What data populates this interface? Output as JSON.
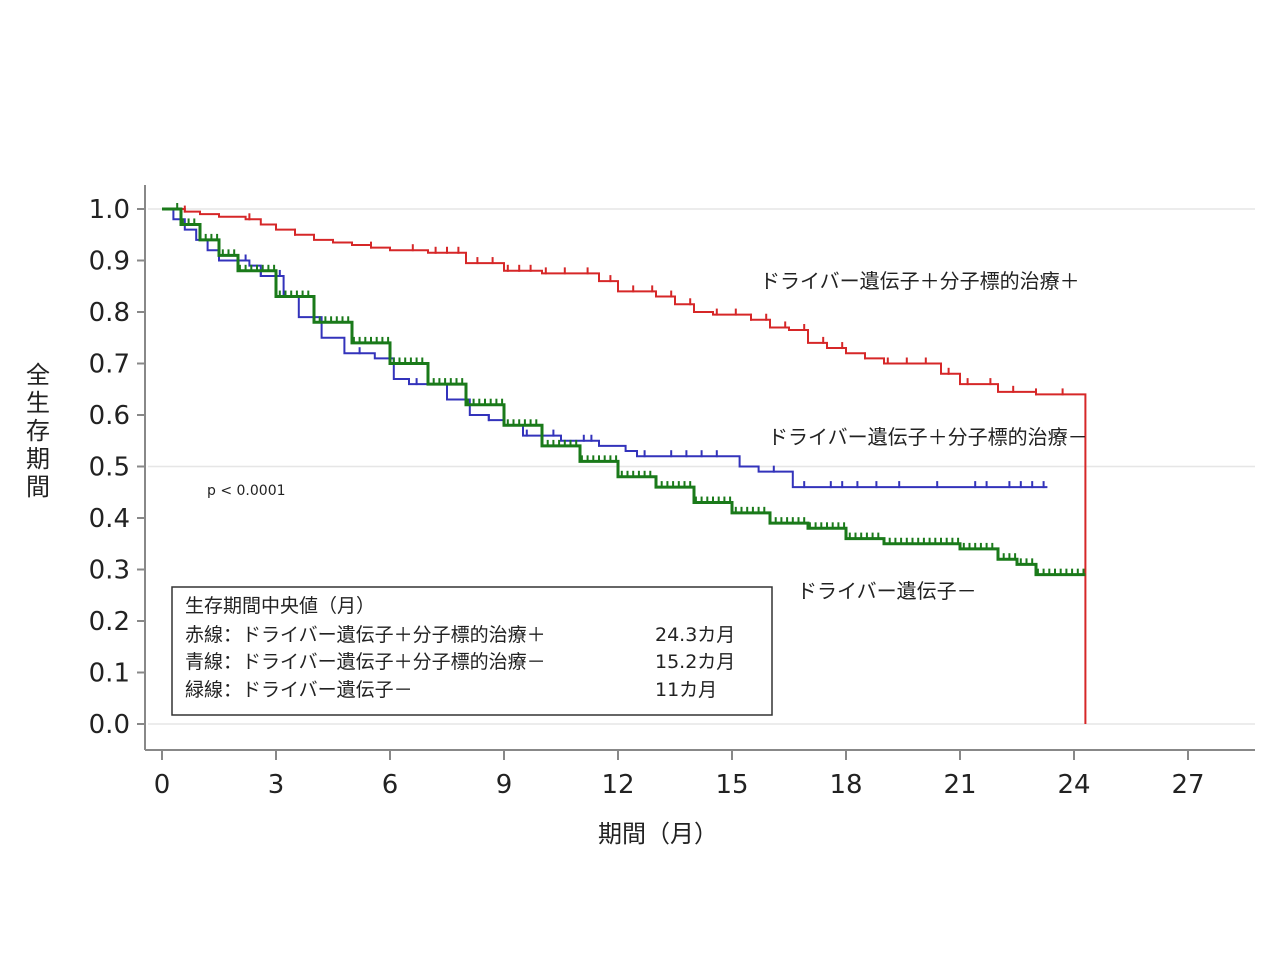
{
  "chart_data": {
    "type": "line",
    "chart_kind": "kaplan-meier",
    "xlabel": "期間（月）",
    "ylabel": "全生存期間",
    "xlim": [
      0,
      27
    ],
    "ylim": [
      0,
      1
    ],
    "xticks": [
      "0",
      "3",
      "6",
      "9",
      "12",
      "15",
      "18",
      "21",
      "24",
      "27"
    ],
    "yticks": [
      "0.0",
      "0.1",
      "0.2",
      "0.3",
      "0.4",
      "0.5",
      "0.6",
      "0.7",
      "0.8",
      "0.9",
      "1.0"
    ],
    "reference_lines_y": [
      1.0,
      0.5,
      0.0
    ],
    "annotation": "p < 0.0001",
    "legend": {
      "title": "生存期間中央値（月）",
      "rows": [
        {
          "label": "赤線：ドライバー遺伝子＋分子標的治療＋",
          "value": "24.3カ月"
        },
        {
          "label": "青線：ドライバー遺伝子＋分子標的治療－",
          "value": "15.2カ月"
        },
        {
          "label": "緑線：ドライバー遺伝子－",
          "value": "11カ月"
        }
      ],
      "position": "bottom-left"
    },
    "series": [
      {
        "name": "ドライバー遺伝子＋分子標的治療＋",
        "color": "#d62728",
        "x": [
          0,
          0.3,
          0.6,
          1.0,
          1.5,
          2.2,
          2.6,
          3.0,
          3.5,
          4.0,
          4.5,
          5.0,
          5.5,
          6.0,
          7.0,
          8.0,
          9.0,
          10.0,
          11.0,
          11.5,
          12.0,
          13.0,
          13.5,
          14.0,
          14.5,
          15.0,
          15.5,
          16.0,
          16.5,
          17.0,
          17.5,
          18.0,
          18.5,
          19.0,
          20.0,
          20.5,
          21.0,
          22.0,
          23.0,
          24.3,
          24.3
        ],
        "y": [
          1.0,
          1.0,
          0.995,
          0.99,
          0.985,
          0.98,
          0.97,
          0.96,
          0.95,
          0.94,
          0.935,
          0.93,
          0.925,
          0.92,
          0.915,
          0.895,
          0.88,
          0.875,
          0.875,
          0.86,
          0.84,
          0.83,
          0.815,
          0.8,
          0.795,
          0.795,
          0.785,
          0.77,
          0.765,
          0.74,
          0.73,
          0.72,
          0.71,
          0.7,
          0.7,
          0.68,
          0.66,
          0.645,
          0.64,
          0.63,
          0.0
        ],
        "censor_x": [
          0.6,
          2.3,
          3.5,
          5.5,
          6.6,
          7.2,
          7.5,
          7.8,
          8.3,
          8.7,
          9.1,
          9.4,
          9.7,
          10.1,
          10.6,
          11.2,
          11.8,
          12.4,
          12.9,
          13.4,
          13.9,
          14.6,
          15.1,
          15.5,
          15.9,
          16.4,
          16.9,
          17.4,
          17.9,
          18.5,
          19.1,
          19.6,
          20.1,
          20.7,
          21.2,
          21.8,
          22.4,
          23.0,
          23.7
        ]
      },
      {
        "name": "ドライバー遺伝子＋分子標的治療－",
        "color": "#3333bb",
        "x": [
          0,
          0.3,
          0.6,
          0.9,
          1.2,
          1.5,
          2.3,
          2.6,
          3.2,
          3.6,
          4.2,
          4.8,
          5.6,
          6.1,
          6.5,
          7.5,
          8.1,
          8.6,
          9.0,
          9.5,
          10.0,
          10.5,
          11.0,
          11.5,
          12.2,
          12.5,
          13.2,
          14.0,
          15.2,
          15.7,
          16.6,
          17.0,
          18.0,
          20.0,
          22.0,
          23.3
        ],
        "y": [
          1.0,
          0.98,
          0.96,
          0.94,
          0.92,
          0.9,
          0.89,
          0.87,
          0.83,
          0.79,
          0.75,
          0.72,
          0.71,
          0.67,
          0.66,
          0.63,
          0.6,
          0.59,
          0.58,
          0.56,
          0.56,
          0.55,
          0.55,
          0.54,
          0.53,
          0.52,
          0.52,
          0.52,
          0.5,
          0.49,
          0.46,
          0.46,
          0.46,
          0.46,
          0.46,
          0.46
        ],
        "censor_x": [
          2.2,
          2.6,
          3.1,
          5.2,
          6.7,
          8.6,
          9.6,
          10.3,
          11.1,
          11.3,
          12.7,
          13.4,
          13.8,
          14.2,
          14.6,
          16.1,
          16.9,
          17.6,
          17.9,
          18.3,
          18.8,
          19.4,
          20.4,
          21.4,
          21.7,
          22.3,
          22.6,
          22.9,
          23.2
        ]
      },
      {
        "name": "ドライバー遺伝子－",
        "color": "#1a7a1a",
        "x": [
          0,
          0.5,
          1.0,
          1.5,
          2.0,
          3.0,
          4.0,
          5.0,
          6.0,
          7.0,
          8.0,
          9.0,
          10.0,
          11.0,
          12.0,
          13.0,
          14.0,
          15.0,
          16.0,
          17.0,
          18.0,
          19.0,
          20.0,
          21.0,
          22.0,
          22.5,
          23.0,
          24.3
        ],
        "y": [
          1.0,
          0.97,
          0.94,
          0.91,
          0.88,
          0.83,
          0.78,
          0.74,
          0.7,
          0.66,
          0.62,
          0.58,
          0.54,
          0.51,
          0.48,
          0.46,
          0.43,
          0.41,
          0.39,
          0.38,
          0.36,
          0.35,
          0.35,
          0.34,
          0.32,
          0.31,
          0.29,
          0.29
        ],
        "censor_every": 0.15
      }
    ],
    "curve_labels": [
      "ドライバー遺伝子＋分子標的治療＋",
      "ドライバー遺伝子＋分子標的治療－",
      "ドライバー遺伝子－"
    ]
  }
}
